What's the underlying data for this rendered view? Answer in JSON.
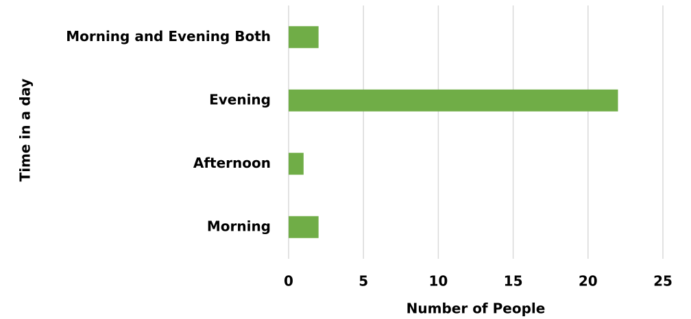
{
  "chart_data": {
    "type": "hbar",
    "categories": [
      "Morning",
      "Afternoon",
      "Evening",
      "Morning and Evening Both"
    ],
    "values": [
      2,
      1,
      22,
      2
    ],
    "color": "#70ad47",
    "xlabel": "Number of People",
    "ylabel": "Time in a day",
    "xlim": [
      0,
      25
    ],
    "xticks": [
      0,
      5,
      10,
      15,
      20,
      25
    ],
    "grid": true
  }
}
